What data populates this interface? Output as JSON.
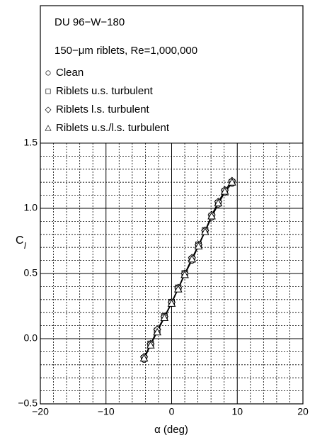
{
  "chart_data": {
    "type": "line",
    "title": "DU 96−W−180",
    "subtitle": "150−μm riblets, Re=1,000,000",
    "x_label": "α (deg)",
    "y_label": "C",
    "y_label_sub": "l",
    "xlim": [
      -20,
      20
    ],
    "ylim": [
      -0.5,
      1.5
    ],
    "xticks": [
      {
        "value": -20,
        "label": "−20"
      },
      {
        "value": -10,
        "label": "−10"
      },
      0,
      10,
      20
    ],
    "yticks": [
      {
        "value": -0.5,
        "label": "−0.5"
      },
      {
        "value": 0,
        "label": "0.0"
      },
      {
        "value": 0.5,
        "label": "0.5"
      },
      {
        "value": 1,
        "label": "1.0"
      },
      {
        "value": 1.5,
        "label": "1.5"
      }
    ],
    "x_minor": [
      -18,
      -16,
      -14,
      -12,
      -8,
      -6,
      -4,
      -2,
      2,
      4,
      6,
      8,
      12,
      14,
      16,
      18
    ],
    "y_minor": [
      -0.4,
      -0.3,
      -0.2,
      -0.1,
      0.1,
      0.2,
      0.3,
      0.4,
      0.6,
      0.7,
      0.8,
      0.9,
      1.1,
      1.2,
      1.3,
      1.4
    ],
    "grid": true,
    "color": "#000000",
    "series": [
      {
        "name": "Clean",
        "marker": "circle",
        "x": [
          -4.2,
          -3.2,
          -2.2,
          -1.1,
          0,
          1.0,
          2.0,
          3.1,
          4.1,
          5.1,
          6.1,
          7.1,
          8.1,
          9.2
        ],
        "values": [
          -0.16,
          -0.05,
          0.05,
          0.16,
          0.27,
          0.38,
          0.49,
          0.6,
          0.71,
          0.82,
          0.93,
          1.03,
          1.12,
          1.19
        ]
      },
      {
        "name": "Riblets u.s. turbulent",
        "marker": "square",
        "x": [
          -4.2,
          -3.2,
          -2.2,
          -1.1,
          0,
          1.0,
          2.0,
          3.1,
          4.1,
          5.1,
          6.1,
          7.1,
          8.1,
          9.2
        ],
        "values": [
          -0.15,
          -0.04,
          0.06,
          0.17,
          0.28,
          0.39,
          0.5,
          0.61,
          0.72,
          0.83,
          0.94,
          1.04,
          1.13,
          1.2
        ]
      },
      {
        "name": "Riblets l.s. turbulent",
        "marker": "diamond",
        "x": [
          -4.2,
          -3.2,
          -2.2,
          -1.1,
          0,
          1.0,
          2.0,
          3.1,
          4.1,
          5.1,
          6.1,
          7.1,
          8.1,
          9.2
        ],
        "values": [
          -0.14,
          -0.04,
          0.07,
          0.17,
          0.28,
          0.39,
          0.5,
          0.62,
          0.72,
          0.83,
          0.95,
          1.05,
          1.14,
          1.21
        ]
      },
      {
        "name": "Riblets u.s./l.s. turbulent",
        "marker": "triangle",
        "x": [
          -4.2,
          -3.2,
          -2.2,
          -1.1,
          0,
          1.0,
          2.0,
          3.1,
          4.1,
          5.1,
          6.1,
          7.1,
          8.1,
          9.2
        ],
        "values": [
          -0.15,
          -0.05,
          0.05,
          0.16,
          0.27,
          0.38,
          0.49,
          0.61,
          0.71,
          0.82,
          0.94,
          1.04,
          1.13,
          1.2
        ]
      }
    ]
  }
}
